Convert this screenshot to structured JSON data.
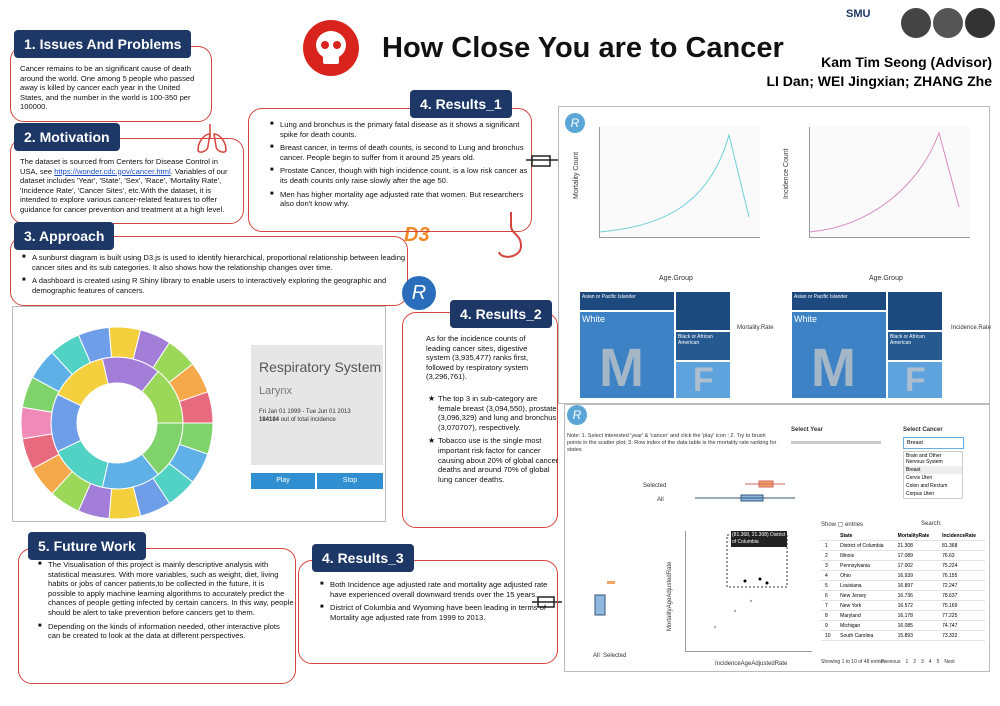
{
  "header": {
    "title": "How Close You are to Cancer",
    "advisor": "Kam Tim Seong (Advisor)",
    "authors": "LI Dan; WEI Jingxian; ZHANG Zhe",
    "logo": "SMU"
  },
  "logos": {
    "d3": "D3",
    "r": "R"
  },
  "sections": {
    "issues": {
      "heading": "1. Issues And Problems",
      "text": "Cancer remains to be an significant cause of death around the world. One among 5 people who passed away is killed by cancer each year in the United States, and the number in the world is 100-350 per 100000."
    },
    "motivation": {
      "heading": "2. Motivation",
      "text_before": "The dataset is sourced from Centers for Disease Control in USA, see ",
      "link": "https://wonder.cdc.gov/cancer.html",
      "text_after": ". Variables of our dataset includes 'Year', 'State', 'Sex', 'Race', 'Mortality Rate', 'Incidence Rate', 'Cancer Sites', etc.With the dataset, it is intended to explore various cancer-related features to offer guidance for cancer prevention and treatment at a high level."
    },
    "approach": {
      "heading": "3. Approach",
      "bullets": [
        "A sunburst diagram is built using D3.js is used to identify hierarchical, proportional relationship between leading cancer sites and its sub categories. It also shows how the relationship changes over time.",
        "A dashboard is created using R Shiny library to enable users to interactively exploring the geographic and demographic features of cancers."
      ]
    },
    "results_1": {
      "heading": "4. Results_1",
      "bullets": [
        "Lung and bronchus is the primary fatal disease as it shows a significant spike for death counts.",
        "Breast cancer, in terms of death counts, is second to Lung and bronchus cancer. People begin to  suffer from it around 25 years old.",
        "Prostate Cancer, though with high incidence count, is a low risk cancer as its death counts only raise slowly after the age 50.",
        "Men has higher mortality age adjusted rate that women. But researchers also don't know why."
      ]
    },
    "results_2": {
      "heading": "4. Results_2",
      "intro": "As for the incidence counts of leading cancer sites, digestive system (3,935,477) ranks first, followed by respiratory system (3,296,761).",
      "bullets": [
        "The top 3 in sub-category are female breast (3,094,550), prostate (3,096,329) and lung and bronchus (3,070707), respectively.",
        "Tobacco use is the single most important risk factor for cancer causing about 20% of global cancer deaths and around 70% of global lung cancer deaths."
      ]
    },
    "results_3": {
      "heading": "4. Results_3",
      "bullets": [
        "Both Incidence age adjusted rate and mortality age adjusted rate have experienced overall downward trends over the  15 years.",
        "District of Columbia and Wyoming have been leading in terms of Mortality age adjusted rate from 1999 to 2013."
      ]
    },
    "future_work": {
      "heading": "5. Future Work",
      "bullets": [
        "The Visualisation of this project is mainly descriptive analysis with statistical measures. With more variables, such as weight, diet, living habits or  jobs of cancer patients,to be collected in the future, it is possible to apply machine learning algorithms  to accurately predict the chances of people getting  infected by certain cancers. In this way, people should be alert to take prevention before cancers get to them.",
        "Depending on the kinds of information needed, other interactive plots can be created to look at the data at different perspectives."
      ]
    }
  },
  "sunburst_app": {
    "title": "Respiratory System",
    "subtitle": "Larynx",
    "date": "Fri Jan 01 1999 - Tue Jun 01 2013",
    "count": "184184",
    "count_suffix": "out of total incidence",
    "buttons": [
      "Play",
      "Stop"
    ]
  },
  "results_charts": {
    "left_y": "Mortality Count",
    "right_y": "Incidence Count",
    "x": "Age.Group",
    "treemap_labels": [
      "Asian or Pacific Islander",
      "White",
      "Black or African American",
      "M",
      "F"
    ],
    "left_legend": "Mortality.Rate",
    "right_legend": "Incidence.Rate"
  },
  "shiny_app": {
    "select_year": "Select Year",
    "select_cancer": "Select Cancer",
    "cancer_value": "Breast",
    "cancer_options": [
      "Brain and Other Nervous System",
      "Breast",
      "Cervix Uteri",
      "Colon and Rectum",
      "Corpus Uteri"
    ],
    "note": "Note: 1. Select interested 'year' & 'cancer' and click the 'play' icon ; 2. Try to brush points in the scatter plot; 3. Row index of the data table is the mortality rate ranking for states",
    "box_labels": [
      "Selected",
      "All"
    ],
    "scatter_x": "IncidenceAgeAdjustedRate",
    "scatter_y": "MortalityAgeAdjustedRate",
    "tooltip": "(81.368, 21.308) District of Columbia",
    "bottom_labels": [
      "All",
      "Selected"
    ],
    "show": "Show",
    "entries": "entries",
    "search": "Search:",
    "table": {
      "columns": [
        "",
        "State",
        "MortalityRate",
        "IncidenceRate"
      ],
      "rows": [
        [
          "1",
          "District of Columbia",
          "21.308",
          "81.368"
        ],
        [
          "2",
          "Illinois",
          "17.089",
          "76.63"
        ],
        [
          "3",
          "Pennsylvania",
          "17.002",
          "75.224"
        ],
        [
          "4",
          "Ohio",
          "16.939",
          "76.155"
        ],
        [
          "5",
          "Louisiana",
          "16.897",
          "72.247"
        ],
        [
          "6",
          "New Jersey",
          "16.736",
          "78.637"
        ],
        [
          "7",
          "New York",
          "16.572",
          "75.169"
        ],
        [
          "8",
          "Maryland",
          "16.178",
          "77.225"
        ],
        [
          "9",
          "Michigan",
          "16.085",
          "74.747"
        ],
        [
          "10",
          "South Carolina",
          "15.893",
          "73.332"
        ]
      ]
    },
    "footer": "Showing 1 to 10 of 48 entries",
    "pager": [
      "Previous",
      "1",
      "2",
      "3",
      "4",
      "5",
      "Next"
    ]
  }
}
